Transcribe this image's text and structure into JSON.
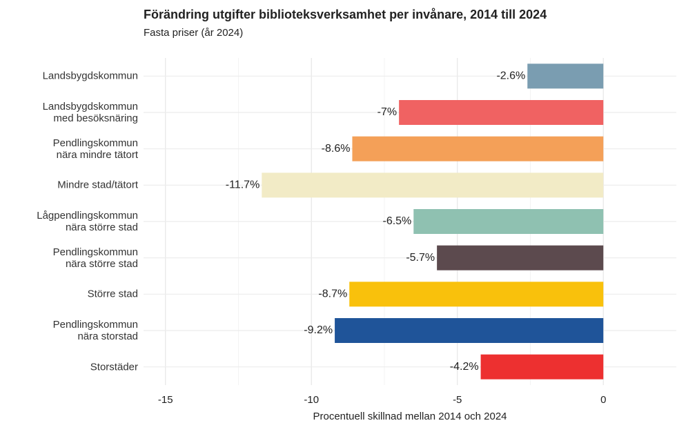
{
  "chart_data": {
    "type": "barh",
    "title": "Förändring utgifter biblioteksverksamhet per invånare, 2014 till 2024",
    "subtitle": "Fasta priser (år 2024)",
    "xlabel": "Procentuell skillnad mellan 2014 och 2024",
    "categories": [
      "Landsbygdskommun",
      "Landsbygdskommun\nmed besöksnäring",
      "Pendlingskommun\nnära mindre tätort",
      "Mindre stad/tätort",
      "Lågpendlingskommun\nnära större stad",
      "Pendlingskommun\nnära större stad",
      "Större stad",
      "Pendlingskommun\nnära storstad",
      "Storstäder"
    ],
    "values": [
      -2.6,
      -7,
      -8.6,
      -11.7,
      -6.5,
      -5.7,
      -8.7,
      -9.2,
      -4.2
    ],
    "value_labels": [
      "-2.6%",
      "-7%",
      "-8.6%",
      "-11.7%",
      "-6.5%",
      "-5.7%",
      "-8.7%",
      "-9.2%",
      "-4.2%"
    ],
    "colors": [
      "#7a9db1",
      "#f06262",
      "#f4a058",
      "#f2ebc6",
      "#8fc1b1",
      "#5c4a4e",
      "#f9c10c",
      "#1f5499",
      "#ed3030"
    ],
    "xlim": [
      -15.75,
      2.5
    ],
    "xticks": [
      -15,
      -10,
      -5,
      0
    ],
    "grid": true
  }
}
